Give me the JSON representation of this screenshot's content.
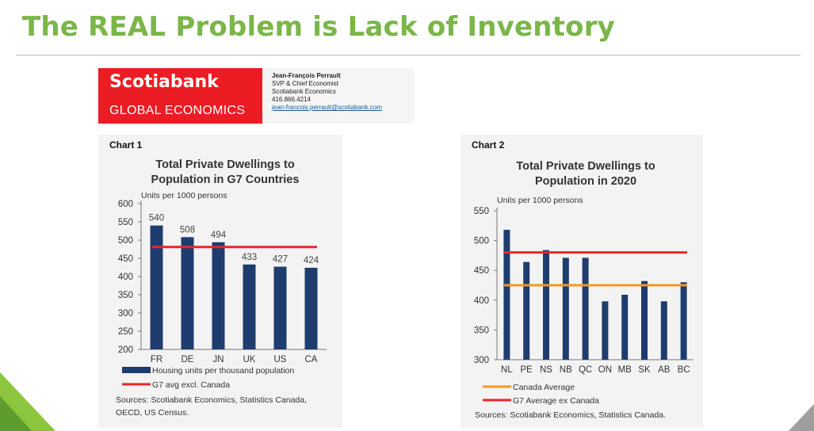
{
  "slide": {
    "title": "The REAL Problem is Lack of Inventory"
  },
  "logo": {
    "name": "Scotiabank",
    "unit": "GLOBAL ECONOMICS"
  },
  "contact": {
    "name": "Jean-François Perrault",
    "role": "SVP & Chief Economist",
    "org": "Scotiabank Economics",
    "phone": "416.866.4214",
    "email": "jean-francois.perrault@scotiabank.com"
  },
  "colors": {
    "title_green": "#7ab648",
    "logo_red": "#ec1c24",
    "bar": "#1f3c6e",
    "line_red": "#e8262c",
    "line_orange": "#f39a1e"
  },
  "chart_data": [
    {
      "type": "bar",
      "label": "Chart 1",
      "title": [
        "Total Private Dwellings to",
        "Population in G7 Countries"
      ],
      "unit": "Units per 1000 persons",
      "categories": [
        "FR",
        "DE",
        "JN",
        "UK",
        "US",
        "CA"
      ],
      "series": [
        {
          "name": "Housing units per thousand population",
          "values": [
            540,
            508,
            494,
            433,
            427,
            424
          ]
        }
      ],
      "data_labels": [
        "540",
        "508",
        "494",
        "433",
        "427",
        "424"
      ],
      "reference_lines": [
        {
          "name": "G7 avg excl. Canada",
          "value": 481,
          "color": "#e8262c"
        }
      ],
      "ylim": [
        200,
        600
      ],
      "yticks": [
        200,
        250,
        300,
        350,
        400,
        450,
        500,
        550,
        600
      ],
      "grid": false,
      "legend_position": "bottom",
      "source": [
        "Sources: Scotiabank Economics, Statistics Canada,",
        "OECD, US Census."
      ]
    },
    {
      "type": "bar",
      "label": "Chart 2",
      "title": [
        "Total Private Dwellings to",
        "Population in 2020"
      ],
      "unit": "Units per 1000 persons",
      "categories": [
        "NL",
        "PE",
        "NS",
        "NB",
        "QC",
        "ON",
        "MB",
        "SK",
        "AB",
        "BC"
      ],
      "series": [
        {
          "values": [
            518,
            464,
            484,
            471,
            471,
            398,
            409,
            432,
            398,
            430
          ]
        }
      ],
      "reference_lines": [
        {
          "name": "Canada Average",
          "value": 425,
          "color": "#f39a1e"
        },
        {
          "name": "G7 Average ex Canada",
          "value": 480,
          "color": "#e8262c"
        }
      ],
      "ylim": [
        300,
        550
      ],
      "yticks": [
        300,
        350,
        400,
        450,
        500,
        550
      ],
      "grid": false,
      "legend_position": "bottom",
      "source": [
        "Sources: Scotiabank Economics, Statistics Canada."
      ]
    }
  ]
}
